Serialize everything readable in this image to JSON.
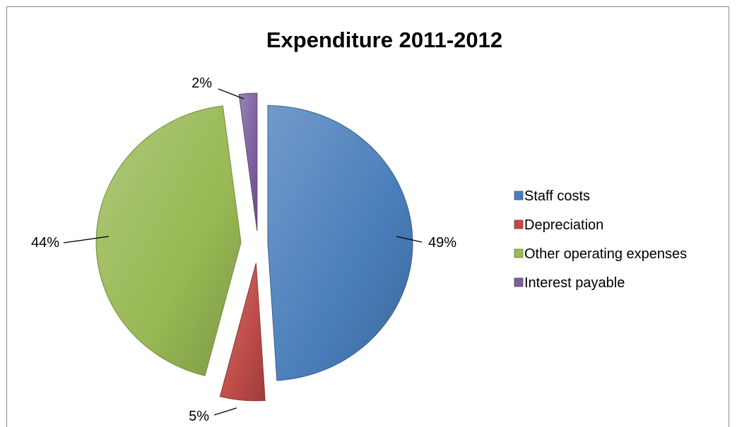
{
  "chart_data": {
    "type": "pie",
    "title": "Expenditure 2011-2012",
    "style": "3d-exploded",
    "legend_position": "right",
    "slices": [
      {
        "name": "Staff costs",
        "value": 49,
        "label": "49%",
        "color": "#4a7ebb"
      },
      {
        "name": "Depreciation",
        "value": 5,
        "label": "5%",
        "color": "#be4b48"
      },
      {
        "name": "Other operating expenses",
        "value": 44,
        "label": "44%",
        "color": "#98b954"
      },
      {
        "name": "Interest payable",
        "value": 2,
        "label": "2%",
        "color": "#7d60a0"
      }
    ]
  }
}
